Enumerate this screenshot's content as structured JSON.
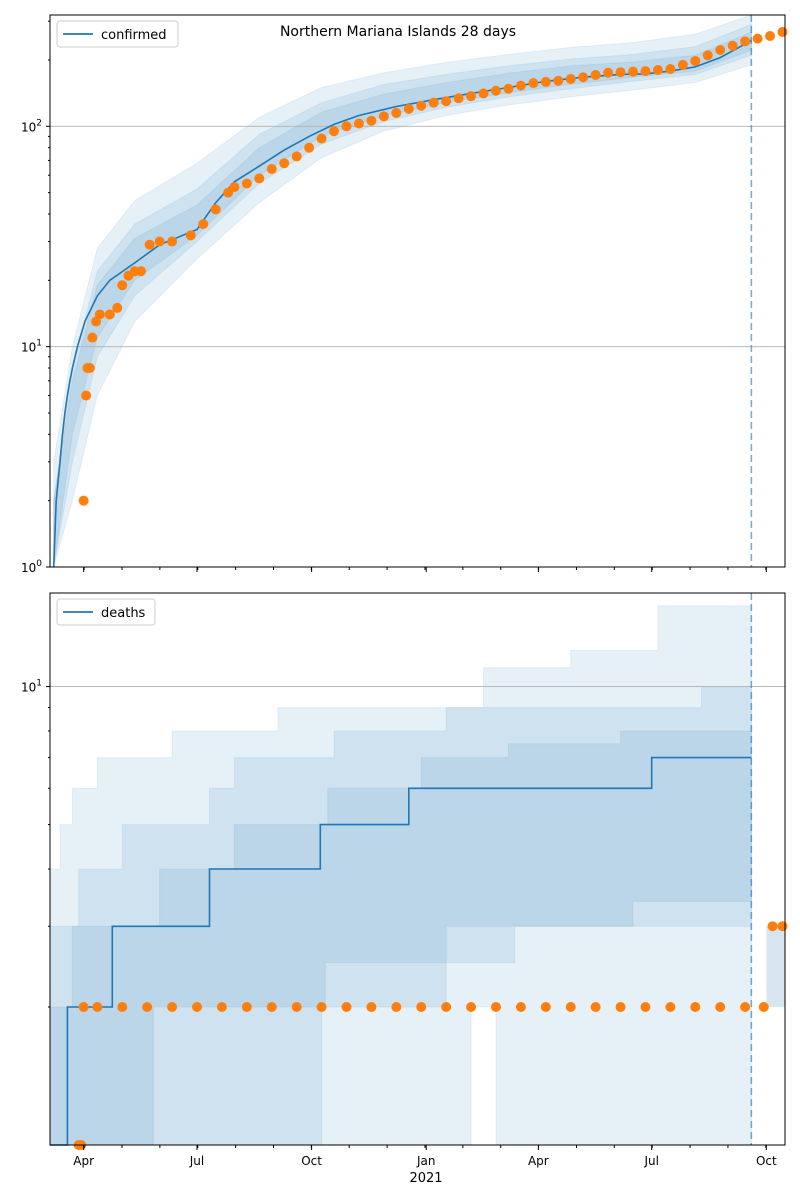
{
  "title": "Northern Mariana Islands 28 days",
  "colors": {
    "model": "#1f77b4",
    "observed": "#ff7f0e",
    "band": "#1f77b4",
    "grid": "#b0b0b0",
    "forecast_line": "#1f77b4"
  },
  "x_axis": {
    "ticks": [
      {
        "label": "Apr",
        "day": 9
      },
      {
        "label": "Jul",
        "day": 100
      },
      {
        "label": "Oct",
        "day": 192
      },
      {
        "label": "Jan",
        "day": 284
      },
      {
        "label": "Apr",
        "day": 374
      },
      {
        "label": "Jul",
        "day": 465
      },
      {
        "label": "Oct",
        "day": 557
      }
    ],
    "year_label": "2021",
    "range_days": [
      -18,
      572
    ],
    "forecast_start_day": 545
  },
  "chart_data": [
    {
      "type": "line",
      "legend": "confirmed",
      "legend_position": "top-left",
      "yscale": "log",
      "ylim": [
        1,
        320
      ],
      "y_ticks": [
        {
          "value": 1,
          "label": "10^0"
        },
        {
          "value": 10,
          "label": "10^1"
        },
        {
          "value": 100,
          "label": "10^2"
        }
      ],
      "model_line": [
        [
          -15,
          1
        ],
        [
          -13,
          2
        ],
        [
          -10,
          3
        ],
        [
          -8,
          4
        ],
        [
          -6,
          5
        ],
        [
          -4,
          6
        ],
        [
          -2,
          7
        ],
        [
          0,
          8
        ],
        [
          4,
          10
        ],
        [
          10,
          13
        ],
        [
          20,
          17
        ],
        [
          30,
          20
        ],
        [
          50,
          24
        ],
        [
          70,
          29
        ],
        [
          100,
          34
        ],
        [
          115,
          45
        ],
        [
          130,
          56
        ],
        [
          150,
          66
        ],
        [
          170,
          78
        ],
        [
          190,
          90
        ],
        [
          210,
          102
        ],
        [
          230,
          112
        ],
        [
          260,
          123
        ],
        [
          290,
          132
        ],
        [
          320,
          141
        ],
        [
          350,
          150
        ],
        [
          380,
          160
        ],
        [
          410,
          167
        ],
        [
          440,
          172
        ],
        [
          460,
          173
        ],
        [
          480,
          178
        ],
        [
          500,
          186
        ],
        [
          520,
          205
        ],
        [
          545,
          245
        ]
      ],
      "observed": [
        [
          9,
          2
        ],
        [
          11,
          6
        ],
        [
          12,
          8
        ],
        [
          14,
          8
        ],
        [
          16,
          11
        ],
        [
          19,
          13
        ],
        [
          22,
          14
        ],
        [
          30,
          14
        ],
        [
          36,
          15
        ],
        [
          40,
          19
        ],
        [
          45,
          21
        ],
        [
          50,
          22
        ],
        [
          55,
          22
        ],
        [
          62,
          29
        ],
        [
          70,
          30
        ],
        [
          80,
          30
        ],
        [
          95,
          32
        ],
        [
          105,
          36
        ],
        [
          115,
          42
        ],
        [
          125,
          50
        ],
        [
          130,
          53
        ],
        [
          140,
          55
        ],
        [
          150,
          58
        ],
        [
          160,
          64
        ],
        [
          170,
          68
        ],
        [
          180,
          73
        ],
        [
          190,
          80
        ],
        [
          200,
          88
        ],
        [
          210,
          95
        ],
        [
          220,
          100
        ],
        [
          230,
          103
        ],
        [
          240,
          106
        ],
        [
          250,
          111
        ],
        [
          260,
          115
        ],
        [
          270,
          120
        ],
        [
          280,
          124
        ],
        [
          290,
          128
        ],
        [
          300,
          130
        ],
        [
          310,
          134
        ],
        [
          320,
          137
        ],
        [
          330,
          141
        ],
        [
          340,
          145
        ],
        [
          350,
          148
        ],
        [
          360,
          153
        ],
        [
          370,
          157
        ],
        [
          380,
          159
        ],
        [
          390,
          161
        ],
        [
          400,
          164
        ],
        [
          410,
          167
        ],
        [
          420,
          171
        ],
        [
          430,
          175
        ],
        [
          440,
          176
        ],
        [
          450,
          177
        ],
        [
          460,
          178
        ],
        [
          470,
          180
        ],
        [
          480,
          182
        ],
        [
          490,
          190
        ],
        [
          500,
          198
        ],
        [
          510,
          210
        ],
        [
          520,
          222
        ],
        [
          530,
          232
        ],
        [
          540,
          243
        ],
        [
          550,
          250
        ],
        [
          560,
          257
        ],
        [
          570,
          268
        ]
      ],
      "bands": [
        {
          "lower": [
            [
              -15,
              1
            ],
            [
              0,
              2
            ],
            [
              20,
              6
            ],
            [
              50,
              13
            ],
            [
              100,
              25
            ],
            [
              150,
              45
            ],
            [
              200,
              72
            ],
            [
              250,
              95
            ],
            [
              300,
              112
            ],
            [
              350,
              125
            ],
            [
              400,
              136
            ],
            [
              450,
              146
            ],
            [
              500,
              158
            ],
            [
              545,
              190
            ]
          ],
          "upper": [
            [
              -15,
              3
            ],
            [
              0,
              10
            ],
            [
              20,
              28
            ],
            [
              50,
              46
            ],
            [
              100,
              68
            ],
            [
              150,
              110
            ],
            [
              200,
              150
            ],
            [
              250,
              175
            ],
            [
              300,
              195
            ],
            [
              350,
              212
            ],
            [
              400,
              228
            ],
            [
              450,
              240
            ],
            [
              500,
              262
            ],
            [
              545,
              320
            ]
          ]
        },
        {
          "lower": [
            [
              -15,
              1
            ],
            [
              0,
              3
            ],
            [
              20,
              9
            ],
            [
              50,
              17
            ],
            [
              100,
              30
            ],
            [
              150,
              55
            ],
            [
              200,
              83
            ],
            [
              250,
              105
            ],
            [
              300,
              122
            ],
            [
              350,
              136
            ],
            [
              400,
              148
            ],
            [
              450,
              160
            ],
            [
              500,
              172
            ],
            [
              545,
              210
            ]
          ],
          "upper": [
            [
              -15,
              2
            ],
            [
              0,
              8
            ],
            [
              20,
              22
            ],
            [
              50,
              36
            ],
            [
              100,
              52
            ],
            [
              150,
              92
            ],
            [
              200,
              128
            ],
            [
              250,
              155
            ],
            [
              300,
              172
            ],
            [
              350,
              188
            ],
            [
              400,
              202
            ],
            [
              450,
              212
            ],
            [
              500,
              230
            ],
            [
              545,
              290
            ]
          ]
        },
        {
          "lower": [
            [
              -15,
              1
            ],
            [
              0,
              4
            ],
            [
              20,
              11
            ],
            [
              50,
              20
            ],
            [
              100,
              32
            ],
            [
              150,
              60
            ],
            [
              200,
              90
            ],
            [
              250,
              112
            ],
            [
              300,
              128
            ],
            [
              350,
              142
            ],
            [
              400,
              155
            ],
            [
              450,
              167
            ],
            [
              500,
              178
            ],
            [
              545,
              222
            ]
          ],
          "upper": [
            [
              -15,
              2
            ],
            [
              0,
              7
            ],
            [
              20,
              19
            ],
            [
              50,
              31
            ],
            [
              100,
              44
            ],
            [
              150,
              80
            ],
            [
              200,
              116
            ],
            [
              250,
              140
            ],
            [
              300,
              158
            ],
            [
              350,
              174
            ],
            [
              400,
              188
            ],
            [
              450,
              196
            ],
            [
              500,
              210
            ],
            [
              545,
              268
            ]
          ]
        }
      ]
    },
    {
      "type": "line",
      "legend": "deaths",
      "legend_position": "top-left",
      "yscale": "log",
      "ylim": [
        1,
        16
      ],
      "y_ticks": [
        {
          "value": 10,
          "label": "10^1"
        }
      ],
      "model_line": [
        [
          -18,
          1
        ],
        [
          -4,
          1
        ],
        [
          -4,
          2
        ],
        [
          32,
          2
        ],
        [
          32,
          3
        ],
        [
          110,
          3
        ],
        [
          110,
          4
        ],
        [
          199,
          4
        ],
        [
          199,
          5
        ],
        [
          270,
          5
        ],
        [
          270,
          6
        ],
        [
          465,
          6
        ],
        [
          465,
          7
        ],
        [
          545,
          7
        ]
      ],
      "observed": [
        [
          5,
          1
        ],
        [
          7,
          1
        ],
        [
          9,
          2
        ],
        [
          20,
          2
        ],
        [
          40,
          2
        ],
        [
          60,
          2
        ],
        [
          80,
          2
        ],
        [
          100,
          2
        ],
        [
          120,
          2
        ],
        [
          140,
          2
        ],
        [
          160,
          2
        ],
        [
          180,
          2
        ],
        [
          200,
          2
        ],
        [
          220,
          2
        ],
        [
          240,
          2
        ],
        [
          260,
          2
        ],
        [
          280,
          2
        ],
        [
          300,
          2
        ],
        [
          320,
          2
        ],
        [
          340,
          2
        ],
        [
          360,
          2
        ],
        [
          380,
          2
        ],
        [
          400,
          2
        ],
        [
          420,
          2
        ],
        [
          440,
          2
        ],
        [
          460,
          2
        ],
        [
          480,
          2
        ],
        [
          500,
          2
        ],
        [
          520,
          2
        ],
        [
          540,
          2
        ],
        [
          555,
          2
        ],
        [
          562,
          3
        ],
        [
          570,
          3
        ]
      ],
      "after_forecast_band": {
        "from_day": 557,
        "lower": 2,
        "upper": 3
      },
      "bands": [
        {
          "lower": [
            [
              -18,
              1
            ],
            [
              320,
              1
            ],
            [
              320,
              2
            ],
            [
              340,
              2
            ],
            [
              340,
              1
            ],
            [
              545,
              1
            ]
          ],
          "upper": [
            [
              -18,
              4
            ],
            [
              -10,
              5
            ],
            [
              0,
              6
            ],
            [
              20,
              7
            ],
            [
              80,
              8
            ],
            [
              165,
              9
            ],
            [
              330,
              11
            ],
            [
              400,
              12
            ],
            [
              470,
              15
            ],
            [
              545,
              16
            ]
          ]
        },
        {
          "lower": [
            [
              -18,
              1
            ],
            [
              65,
              1
            ],
            [
              65,
              2
            ],
            [
              203,
              2
            ],
            [
              203,
              2.5
            ],
            [
              355,
              2.5
            ],
            [
              355,
              3
            ],
            [
              545,
              3
            ]
          ],
          "upper": [
            [
              -18,
              3
            ],
            [
              5,
              4
            ],
            [
              40,
              5
            ],
            [
              110,
              6
            ],
            [
              130,
              7
            ],
            [
              210,
              8
            ],
            [
              300,
              9
            ],
            [
              405,
              9
            ],
            [
              505,
              10
            ],
            [
              545,
              10
            ]
          ]
        },
        {
          "lower": [
            [
              -18,
              1
            ],
            [
              200,
              1
            ],
            [
              200,
              2
            ],
            [
              300,
              2
            ],
            [
              300,
              3
            ],
            [
              450,
              3
            ],
            [
              450,
              3.4
            ],
            [
              545,
              3.4
            ]
          ],
          "upper": [
            [
              -18,
              2
            ],
            [
              0,
              3
            ],
            [
              70,
              4
            ],
            [
              130,
              5
            ],
            [
              205,
              6
            ],
            [
              280,
              7
            ],
            [
              350,
              7.5
            ],
            [
              440,
              8
            ],
            [
              545,
              8
            ]
          ]
        }
      ]
    }
  ]
}
